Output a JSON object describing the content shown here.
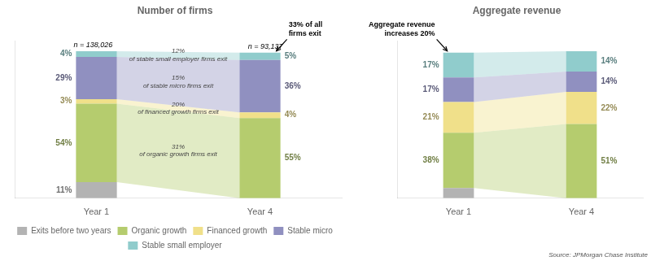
{
  "chart_data": [
    {
      "type": "bar",
      "title": "Number of firms",
      "categories": [
        "Year 1",
        "Year 4"
      ],
      "stacked": true,
      "ylim": [
        0,
        108
      ],
      "yticks": [],
      "tick_labels": "x",
      "grid": false,
      "legend": "bottom",
      "data_labels": true,
      "series": [
        {
          "name": "Exits before two years",
          "color": "#b3b3b3",
          "values": [
            11,
            0
          ],
          "value_labels": [
            "11%",
            null
          ]
        },
        {
          "name": "Organic growth",
          "color": "#b5cc6e",
          "values": [
            54,
            55
          ],
          "value_labels": [
            "54%",
            "55%"
          ]
        },
        {
          "name": "Financed growth",
          "color": "#f0e08a",
          "values": [
            3,
            4
          ],
          "value_labels": [
            "3%",
            "4%"
          ]
        },
        {
          "name": "Stable micro",
          "color": "#9090c0",
          "values": [
            29,
            36
          ],
          "value_labels": [
            "29%",
            "36%"
          ]
        },
        {
          "name": "Stable small employer",
          "color": "#90cccc",
          "values": [
            4,
            5
          ],
          "value_labels": [
            "4%",
            "5%"
          ]
        }
      ],
      "annotations": [
        {
          "text": "n = 138,026",
          "category": "Year 1"
        },
        {
          "text": "n = 93,137",
          "category": "Year 4"
        },
        {
          "text": "33% of all\nfirms exit",
          "category": "Year 4",
          "arrow": true
        },
        {
          "text": "31%\nof organic growth firms exit",
          "series": "Organic growth"
        },
        {
          "text": "20%\nof financed growth firms exit",
          "series": "Financed growth"
        },
        {
          "text": "15%\nof stable micro firms exit",
          "series": "Stable micro"
        },
        {
          "text": "12%\nof stable small employer firms exit",
          "series": "Stable small employer"
        }
      ]
    },
    {
      "type": "bar",
      "title": "Aggregate revenue",
      "categories": [
        "Year 1",
        "Year 4"
      ],
      "stacked": true,
      "ylim": [
        0,
        108
      ],
      "yticks": [],
      "tick_labels": "x",
      "grid": false,
      "data_labels": true,
      "series": [
        {
          "name": "Exits before two years",
          "color": "#b3b3b3",
          "values": [
            7,
            0
          ]
        },
        {
          "name": "Organic growth",
          "color": "#b5cc6e",
          "values": [
            38,
            51
          ],
          "value_labels": [
            "38%",
            "51%"
          ]
        },
        {
          "name": "Financed growth",
          "color": "#f0e08a",
          "values": [
            21,
            22
          ],
          "value_labels": [
            "21%",
            "22%"
          ]
        },
        {
          "name": "Stable micro",
          "color": "#9090c0",
          "values": [
            17,
            14
          ],
          "value_labels": [
            "17%",
            "14%"
          ]
        },
        {
          "name": "Stable small employer",
          "color": "#90cccc",
          "values": [
            17,
            14
          ],
          "value_labels": [
            "17%",
            "14%"
          ]
        }
      ],
      "annotations": [
        {
          "text": "Aggregate revenue\nincreases 20%",
          "category": "Year 1",
          "arrow": true
        },
        {
          "text": "Source: JPMorgan Chase Institute"
        }
      ]
    }
  ]
}
